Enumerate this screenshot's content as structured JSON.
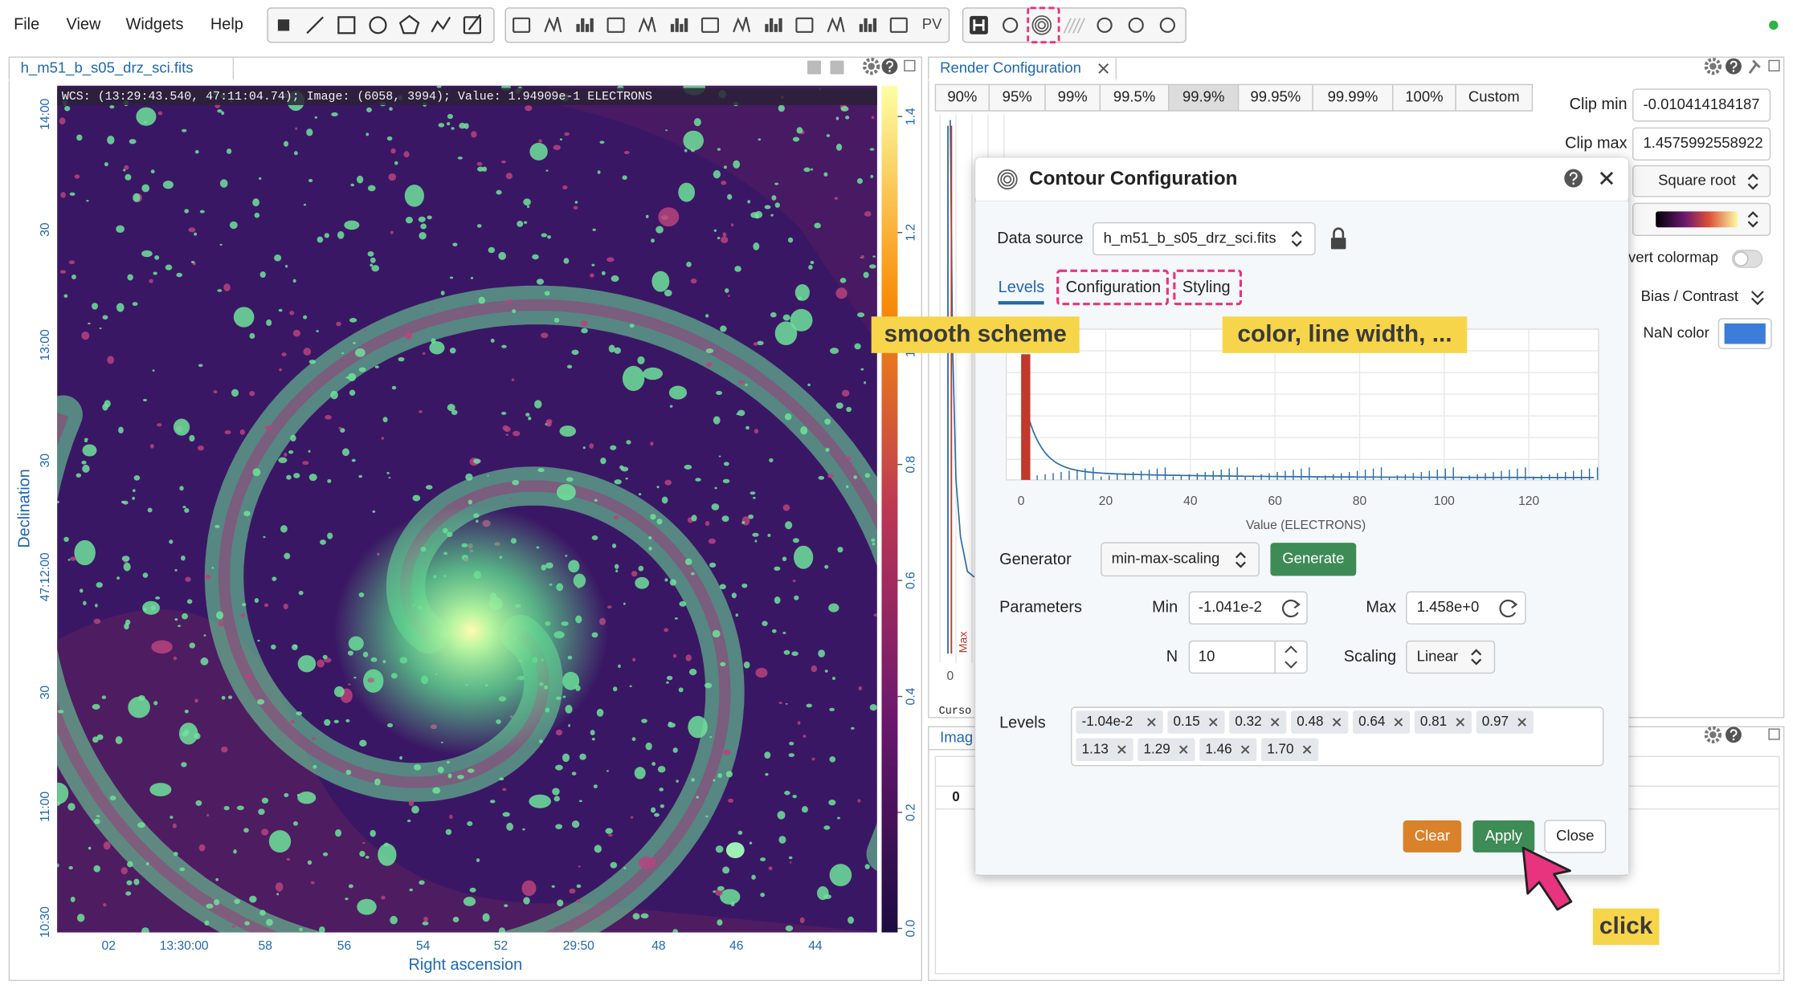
{
  "menu": [
    "File",
    "View",
    "Widgets",
    "Help"
  ],
  "toolbar": {
    "pv": "PV"
  },
  "image_panel": {
    "tab": "h_m51_b_s05_drz_sci.fits",
    "wcs": "WCS: (13:29:43.540, 47:11:04.74); Image: (6058, 3994); Value:  1.94909e-1 ELECTRONS",
    "y_label": "Declination",
    "x_label": "Right ascension",
    "y_ticks": [
      "14:00",
      "30",
      "13:00",
      "30",
      "47:12:00",
      "30",
      "11:00",
      "10:30"
    ],
    "x_ticks": [
      "02",
      "13:30:00",
      "58",
      "56",
      "54",
      "52",
      "29:50",
      "48",
      "46",
      "44"
    ],
    "colorbar_ticks": [
      "1.4",
      "1.2",
      "1.0",
      "0.8",
      "0.6",
      "0.4",
      "0.2",
      "0.0"
    ]
  },
  "render_panel": {
    "tab": "Render Configuration",
    "percentiles": [
      "90%",
      "95%",
      "99%",
      "99.5%",
      "99.9%",
      "99.95%",
      "99.99%",
      "100%",
      "Custom"
    ],
    "clip_min_label": "Clip min",
    "clip_min": "-0.010414184187",
    "clip_max_label": "Clip max",
    "clip_max": "1.4575992558922",
    "scaling": "Square root",
    "invert_colormap": "vert colormap",
    "bias_contrast": "Bias / Contrast",
    "nan_color": "NaN color",
    "hist_zero": "0",
    "max_marker": "Max",
    "cursor": "Curso"
  },
  "lower_panel": {
    "tab": "Imag",
    "zero": "0"
  },
  "dialog": {
    "title": "Contour Configuration",
    "data_source_label": "Data source",
    "data_source": "h_m51_b_s05_drz_sci.fits",
    "tabs": [
      "Levels",
      "Configuration",
      "Styling"
    ],
    "hist_x_ticks": [
      "0",
      "20",
      "40",
      "60",
      "80",
      "100",
      "120"
    ],
    "hist_x_label": "Value (ELECTRONS)",
    "generator_label": "Generator",
    "generator": "min-max-scaling",
    "generate": "Generate",
    "parameters_label": "Parameters",
    "min_label": "Min",
    "min": "-1.041e-2",
    "max_label": "Max",
    "max": "1.458e+0",
    "n_label": "N",
    "n": "10",
    "scaling_label": "Scaling",
    "scaling": "Linear",
    "levels_label": "Levels",
    "levels": [
      "-1.04e-2",
      "0.15",
      "0.32",
      "0.48",
      "0.64",
      "0.81",
      "0.97",
      "1.13",
      "1.29",
      "1.46",
      "1.70"
    ],
    "clear": "Clear",
    "apply": "Apply",
    "close": "Close"
  },
  "annotations": {
    "configuration": "smooth scheme",
    "styling": "color, line width, ...",
    "apply": "click"
  }
}
